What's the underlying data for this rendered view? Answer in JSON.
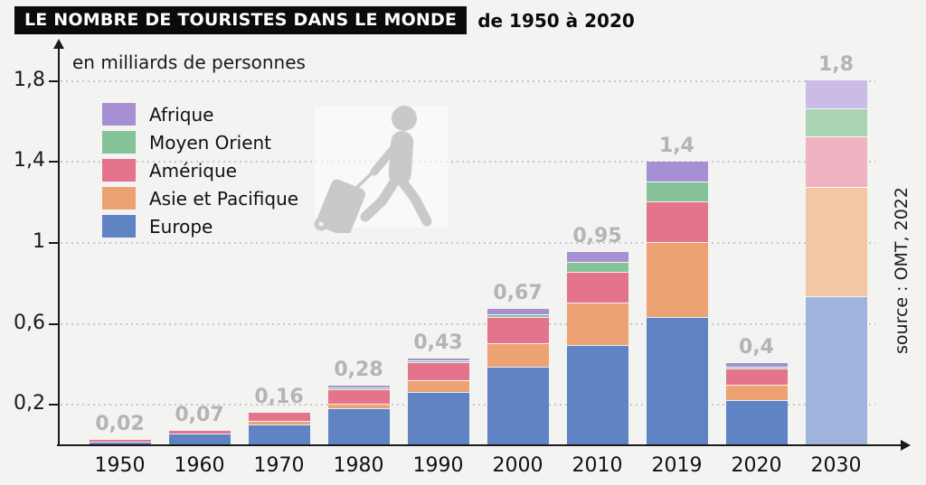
{
  "header": {
    "title": "LE NOMBRE DE TOURISTES DANS LE MONDE",
    "subtitle": "de 1950 à 2020"
  },
  "source": "source : OMT, 2022",
  "icons": {
    "traveler": "person-pulling-suitcase-icon"
  },
  "colors": {
    "background": "#f3f3f1",
    "title_box": "#0b0b0b",
    "title_text": "#ffffff",
    "axis": "#1a1a1a",
    "grid": "#c7c7c5",
    "value_label": "#b4b4b4",
    "icon": "#c9c9c9"
  },
  "chart_data": {
    "type": "bar",
    "subtype": "stacked-column",
    "title": "Le nombre de touristes dans le monde de 1950 à 2020",
    "ylabel": "en milliards de personnes",
    "xlabel": "",
    "categories": [
      "1950",
      "1960",
      "1970",
      "1980",
      "1990",
      "2000",
      "2010",
      "2019",
      "2020",
      "2030"
    ],
    "projection_categories": [
      "2030"
    ],
    "series": [
      {
        "name": "Europe",
        "color": "#5f83c3",
        "projection_color": "#9fb3dc",
        "values": [
          0.015,
          0.055,
          0.1,
          0.178,
          0.26,
          0.385,
          0.49,
          0.63,
          0.22,
          0.73
        ]
      },
      {
        "name": "Asie et Pacifique",
        "color": "#eca273",
        "projection_color": "#f3c7a6",
        "values": [
          0,
          0,
          0.02,
          0.022,
          0.06,
          0.115,
          0.21,
          0.37,
          0.075,
          0.54
        ]
      },
      {
        "name": "Amérique",
        "color": "#e4738c",
        "projection_color": "#efb3c2",
        "values": [
          0.005,
          0.015,
          0.04,
          0.07,
          0.09,
          0.13,
          0.15,
          0.2,
          0.08,
          0.25
        ]
      },
      {
        "name": "Moyen Orient",
        "color": "#85c298",
        "projection_color": "#a8d4b4",
        "values": [
          0,
          0,
          0,
          0.005,
          0.01,
          0.015,
          0.05,
          0.1,
          0.005,
          0.14
        ]
      },
      {
        "name": "Afrique",
        "color": "#a78fd4",
        "projection_color": "#cabbe7",
        "values": [
          0,
          0,
          0,
          0.005,
          0.01,
          0.025,
          0.05,
          0.1,
          0.02,
          0.14
        ]
      }
    ],
    "totals": [
      0.02,
      0.07,
      0.16,
      0.28,
      0.43,
      0.67,
      0.95,
      1.4,
      0.4,
      1.8
    ],
    "total_labels": [
      "0,02",
      "0,07",
      "0,16",
      "0,28",
      "0,43",
      "0,67",
      "0,95",
      "1,4",
      "0,4",
      "1,8"
    ],
    "y_ticks": [
      {
        "value": 1.8,
        "label": "1,8"
      },
      {
        "value": 1.4,
        "label": "1,4"
      },
      {
        "value": 1.0,
        "label": "1"
      },
      {
        "value": 0.6,
        "label": "0,6"
      },
      {
        "value": 0.2,
        "label": "0,2"
      }
    ],
    "ylim": [
      0,
      1.9
    ],
    "grid": "horizontal-dotted",
    "legend_position": "top-left",
    "legend_order_top_to_bottom": [
      "Afrique",
      "Moyen Orient",
      "Amérique",
      "Asie et Pacifique",
      "Europe"
    ]
  }
}
